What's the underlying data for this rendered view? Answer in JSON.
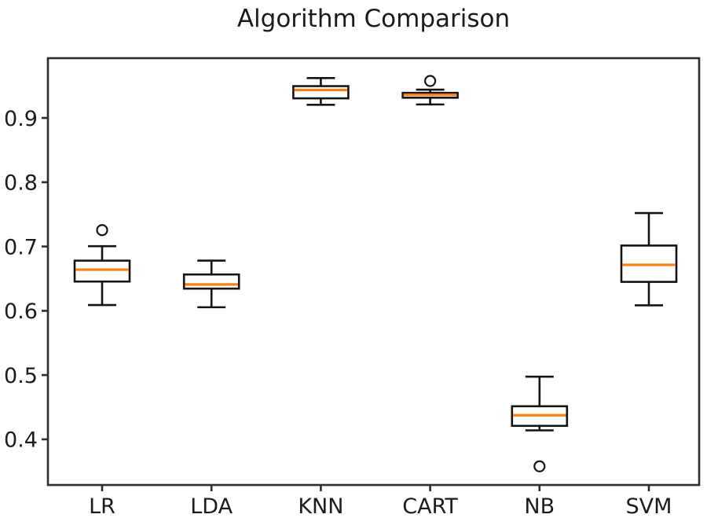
{
  "chart_data": {
    "type": "boxplot",
    "title": "Algorithm Comparison",
    "categories": [
      "LR",
      "LDA",
      "KNN",
      "CART",
      "NB",
      "SVM"
    ],
    "series": [
      {
        "name": "LR",
        "whisker_low": 0.609,
        "q1": 0.6455,
        "median": 0.664,
        "q3": 0.678,
        "whisker_high": 0.7005,
        "outliers": [
          0.7255
        ]
      },
      {
        "name": "LDA",
        "whisker_low": 0.6055,
        "q1": 0.6345,
        "median": 0.641,
        "q3": 0.6565,
        "whisker_high": 0.678,
        "outliers": []
      },
      {
        "name": "KNN",
        "whisker_low": 0.9205,
        "q1": 0.9305,
        "median": 0.9435,
        "q3": 0.9495,
        "whisker_high": 0.962,
        "outliers": []
      },
      {
        "name": "CART",
        "whisker_low": 0.921,
        "q1": 0.9315,
        "median": 0.936,
        "q3": 0.939,
        "whisker_high": 0.944,
        "outliers": [
          0.9575
        ]
      },
      {
        "name": "NB",
        "whisker_low": 0.414,
        "q1": 0.421,
        "median": 0.4375,
        "q3": 0.4515,
        "whisker_high": 0.4975,
        "outliers": [
          0.358
        ]
      },
      {
        "name": "SVM",
        "whisker_low": 0.6085,
        "q1": 0.645,
        "median": 0.6715,
        "q3": 0.7015,
        "whisker_high": 0.752,
        "outliers": []
      }
    ],
    "yticks": [
      0.4,
      0.5,
      0.6,
      0.7,
      0.8,
      0.9
    ],
    "ylim": [
      0.329,
      0.993
    ],
    "xlabel": "",
    "ylabel": "",
    "grid": false,
    "legend": "none",
    "colors": {
      "median": "#ff7f0e",
      "box_line": "#141414",
      "axis": "#2e2e2e",
      "tick_text": "#1c1c1c",
      "background": "#ffffff"
    }
  }
}
